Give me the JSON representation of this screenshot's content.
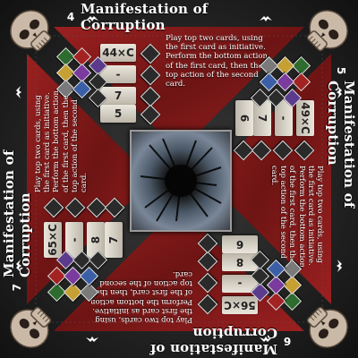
{
  "monster": {
    "name": "Manifestation of Corruption",
    "ability_text": "Play top two cards, using the first card as initiative. Perform the bottom action of the first card, then the top action of the second card."
  },
  "levels": [
    {
      "player_count": "4",
      "health": "44×C",
      "move": "-",
      "attack": "7",
      "range": "5"
    },
    {
      "player_count": "5",
      "health": "49×C",
      "move": "-",
      "attack": "7",
      "range": "6"
    },
    {
      "player_count": "6",
      "health": "56×C",
      "move": "-",
      "attack": "8",
      "range": "6"
    },
    {
      "player_count": "7",
      "health": "65×C",
      "move": "-",
      "attack": "8",
      "range": "7"
    }
  ],
  "immunity_icons": [
    "poison-icon",
    "wound-icon",
    "muddle-icon",
    "immobilize-icon",
    "disarm-icon",
    "stun-icon",
    "curse-icon",
    "pull-icon",
    "push-icon"
  ],
  "stat_icons": [
    "health-icon",
    "move-icon",
    "attack-icon",
    "range-icon"
  ],
  "colors": {
    "accent_red": "#8c1c1c",
    "tile_bg": "#e3dfd4",
    "portrait_dark": "#0a0a0a"
  }
}
